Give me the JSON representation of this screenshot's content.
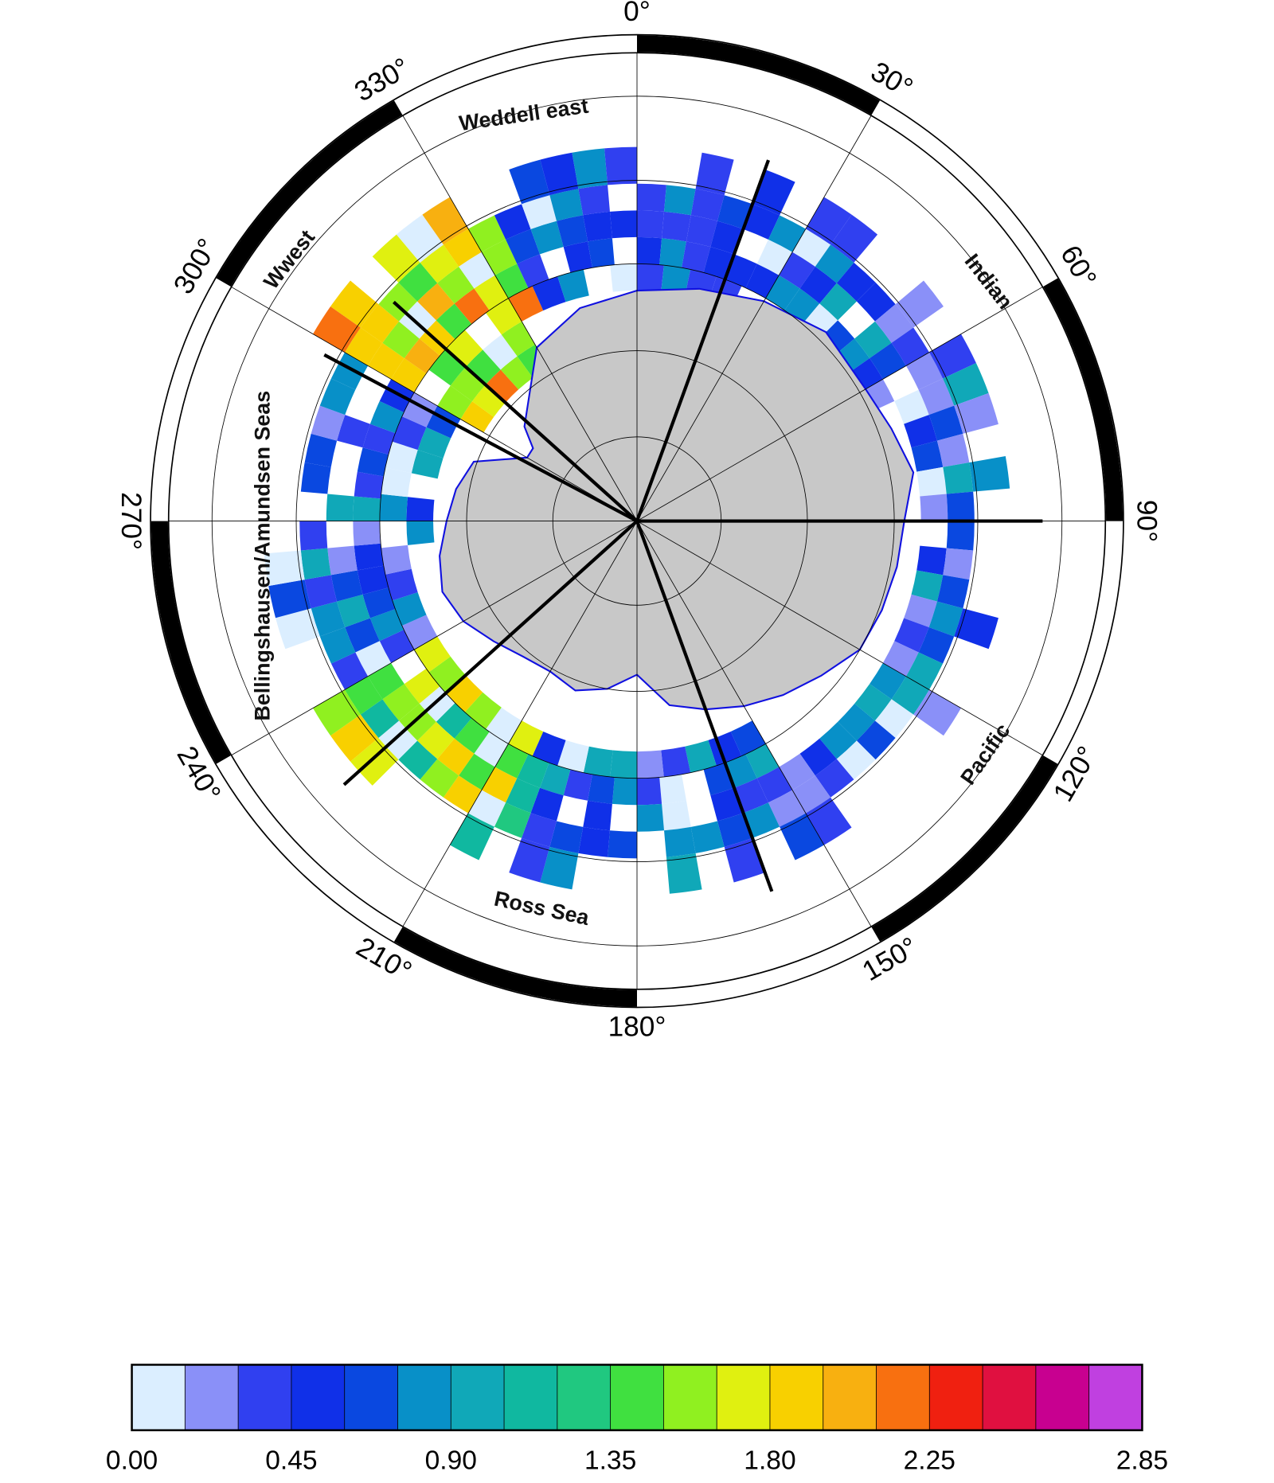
{
  "map": {
    "projection": "south polar stereographic",
    "longitude_labels": [
      {
        "lon": 0,
        "text": "0°"
      },
      {
        "lon": 30,
        "text": "30°"
      },
      {
        "lon": 60,
        "text": "60°"
      },
      {
        "lon": 90,
        "text": "90°"
      },
      {
        "lon": 120,
        "text": "120°"
      },
      {
        "lon": 150,
        "text": "150°"
      },
      {
        "lon": 180,
        "text": "180°"
      },
      {
        "lon": 210,
        "text": "210°"
      },
      {
        "lon": 240,
        "text": "240°"
      },
      {
        "lon": 270,
        "text": "270°"
      },
      {
        "lon": 300,
        "text": "300°"
      },
      {
        "lon": 330,
        "text": "330°"
      }
    ],
    "region_labels": [
      {
        "id": "weddell-east",
        "text": "Weddell east"
      },
      {
        "id": "wwest",
        "text": "Wwest"
      },
      {
        "id": "indian",
        "text": "Indian"
      },
      {
        "id": "pacific",
        "text": "Pacific"
      },
      {
        "id": "ross-sea",
        "text": "Ross Sea"
      },
      {
        "id": "bellingshausen-amundsen",
        "text": "Bellingshausen/Amundsen Seas"
      }
    ],
    "sector_boundaries_lon": [
      20,
      90,
      160,
      228,
      298,
      312
    ],
    "colors": {
      "land": "#c8c8c8",
      "coastline": "#1010e0",
      "boundary": "#000000",
      "frame_black": "#000000"
    }
  },
  "colorbar": {
    "min": 0.0,
    "max": 2.85,
    "step": 0.15,
    "tick_labels": [
      "0.00",
      "0.45",
      "0.90",
      "1.35",
      "1.80",
      "2.25",
      "2.85"
    ],
    "tick_values": [
      0.0,
      0.45,
      0.9,
      1.35,
      1.8,
      2.25,
      2.85
    ],
    "colors": [
      "#dbeeff",
      "#8a90f8",
      "#3040f0",
      "#1030e8",
      "#0a48e0",
      "#0890c8",
      "#10a8b8",
      "#10b8a0",
      "#20c880",
      "#40e040",
      "#90f020",
      "#e0f010",
      "#f8d000",
      "#f8b010",
      "#f87010",
      "#f02010",
      "#e01040",
      "#c80090",
      "#c040e0"
    ]
  }
}
